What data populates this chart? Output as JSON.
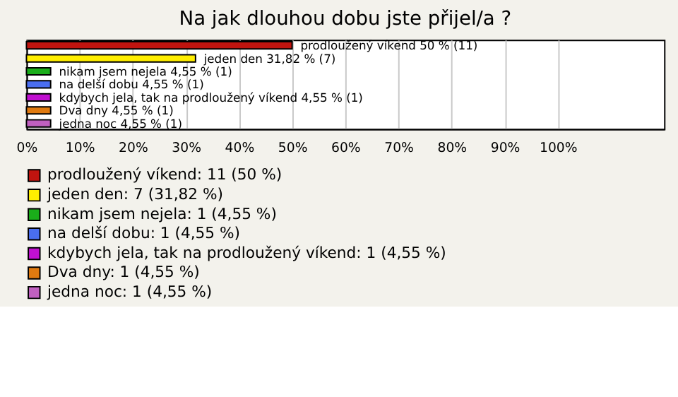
{
  "chart_data": {
    "type": "bar",
    "orientation": "horizontal",
    "title": "Na jak dlouhou dobu jste přijel/a ?",
    "categories": [
      null,
      null,
      null,
      null,
      null,
      null,
      null
    ],
    "series": [
      {
        "name": "prodloužený víkend: 11 (50 %)",
        "color": "#c0140f",
        "values": [
          50,
          null,
          null,
          null,
          null,
          null,
          null
        ],
        "value_labels": [
          "prodloužený víkend 50 % (11)",
          null,
          null,
          null,
          null,
          null,
          null
        ]
      },
      {
        "name": "jeden den: 7 (31,82 %)",
        "color": "#ffee00",
        "values": [
          null,
          31.82,
          null,
          null,
          null,
          null,
          null
        ],
        "value_labels": [
          null,
          "jeden den 31,82 % (7)",
          null,
          null,
          null,
          null,
          null
        ]
      },
      {
        "name": "nikam jsem nejela: 1 (4,55 %)",
        "color": "#1aad1a",
        "values": [
          null,
          null,
          4.55,
          null,
          null,
          null,
          null
        ],
        "value_labels": [
          null,
          null,
          "nikam jsem nejela 4,55 % (1)",
          null,
          null,
          null,
          null
        ]
      },
      {
        "name": "na delší dobu: 1 (4,55 %)",
        "color": "#4a6ef0",
        "values": [
          null,
          null,
          null,
          4.55,
          null,
          null,
          null
        ],
        "value_labels": [
          null,
          null,
          null,
          "na delší dobu 4,55 % (1)",
          null,
          null,
          null
        ]
      },
      {
        "name": "kdybych jela, tak na prodloužený víkend: 1 (4,55 %)",
        "color": "#c010d0",
        "values": [
          null,
          null,
          null,
          null,
          4.55,
          null,
          null
        ],
        "value_labels": [
          null,
          null,
          null,
          null,
          "kdybych jela, tak na prodloužený víkend 4,55 % (1)",
          null,
          null
        ]
      },
      {
        "name": "Dva dny: 1 (4,55 %)",
        "color": "#e07a10",
        "values": [
          null,
          null,
          null,
          null,
          null,
          4.55,
          null
        ],
        "value_labels": [
          null,
          null,
          null,
          null,
          null,
          "Dva dny 4,55 % (1)",
          null
        ]
      },
      {
        "name": "jedna noc: 1 (4,55 %)",
        "color": "#c060c0",
        "values": [
          null,
          null,
          null,
          null,
          null,
          null,
          4.55
        ],
        "value_labels": [
          null,
          null,
          null,
          null,
          null,
          null,
          "jedna noc 4,55 % (1)"
        ]
      }
    ],
    "xlim": [
      0,
      120
    ],
    "xticks": [
      {
        "value": 0,
        "label": "0%"
      },
      {
        "value": 10,
        "label": "10%"
      },
      {
        "value": 20,
        "label": "20%"
      },
      {
        "value": 30,
        "label": "30%"
      },
      {
        "value": 40,
        "label": "40%"
      },
      {
        "value": 50,
        "label": "50%"
      },
      {
        "value": 60,
        "label": "60%"
      },
      {
        "value": 70,
        "label": "70%"
      },
      {
        "value": 80,
        "label": "80%"
      },
      {
        "value": 90,
        "label": "90%"
      },
      {
        "value": 100,
        "label": "100%"
      }
    ],
    "grid": "x",
    "legend": "bottom left",
    "tick_labels": "x"
  }
}
